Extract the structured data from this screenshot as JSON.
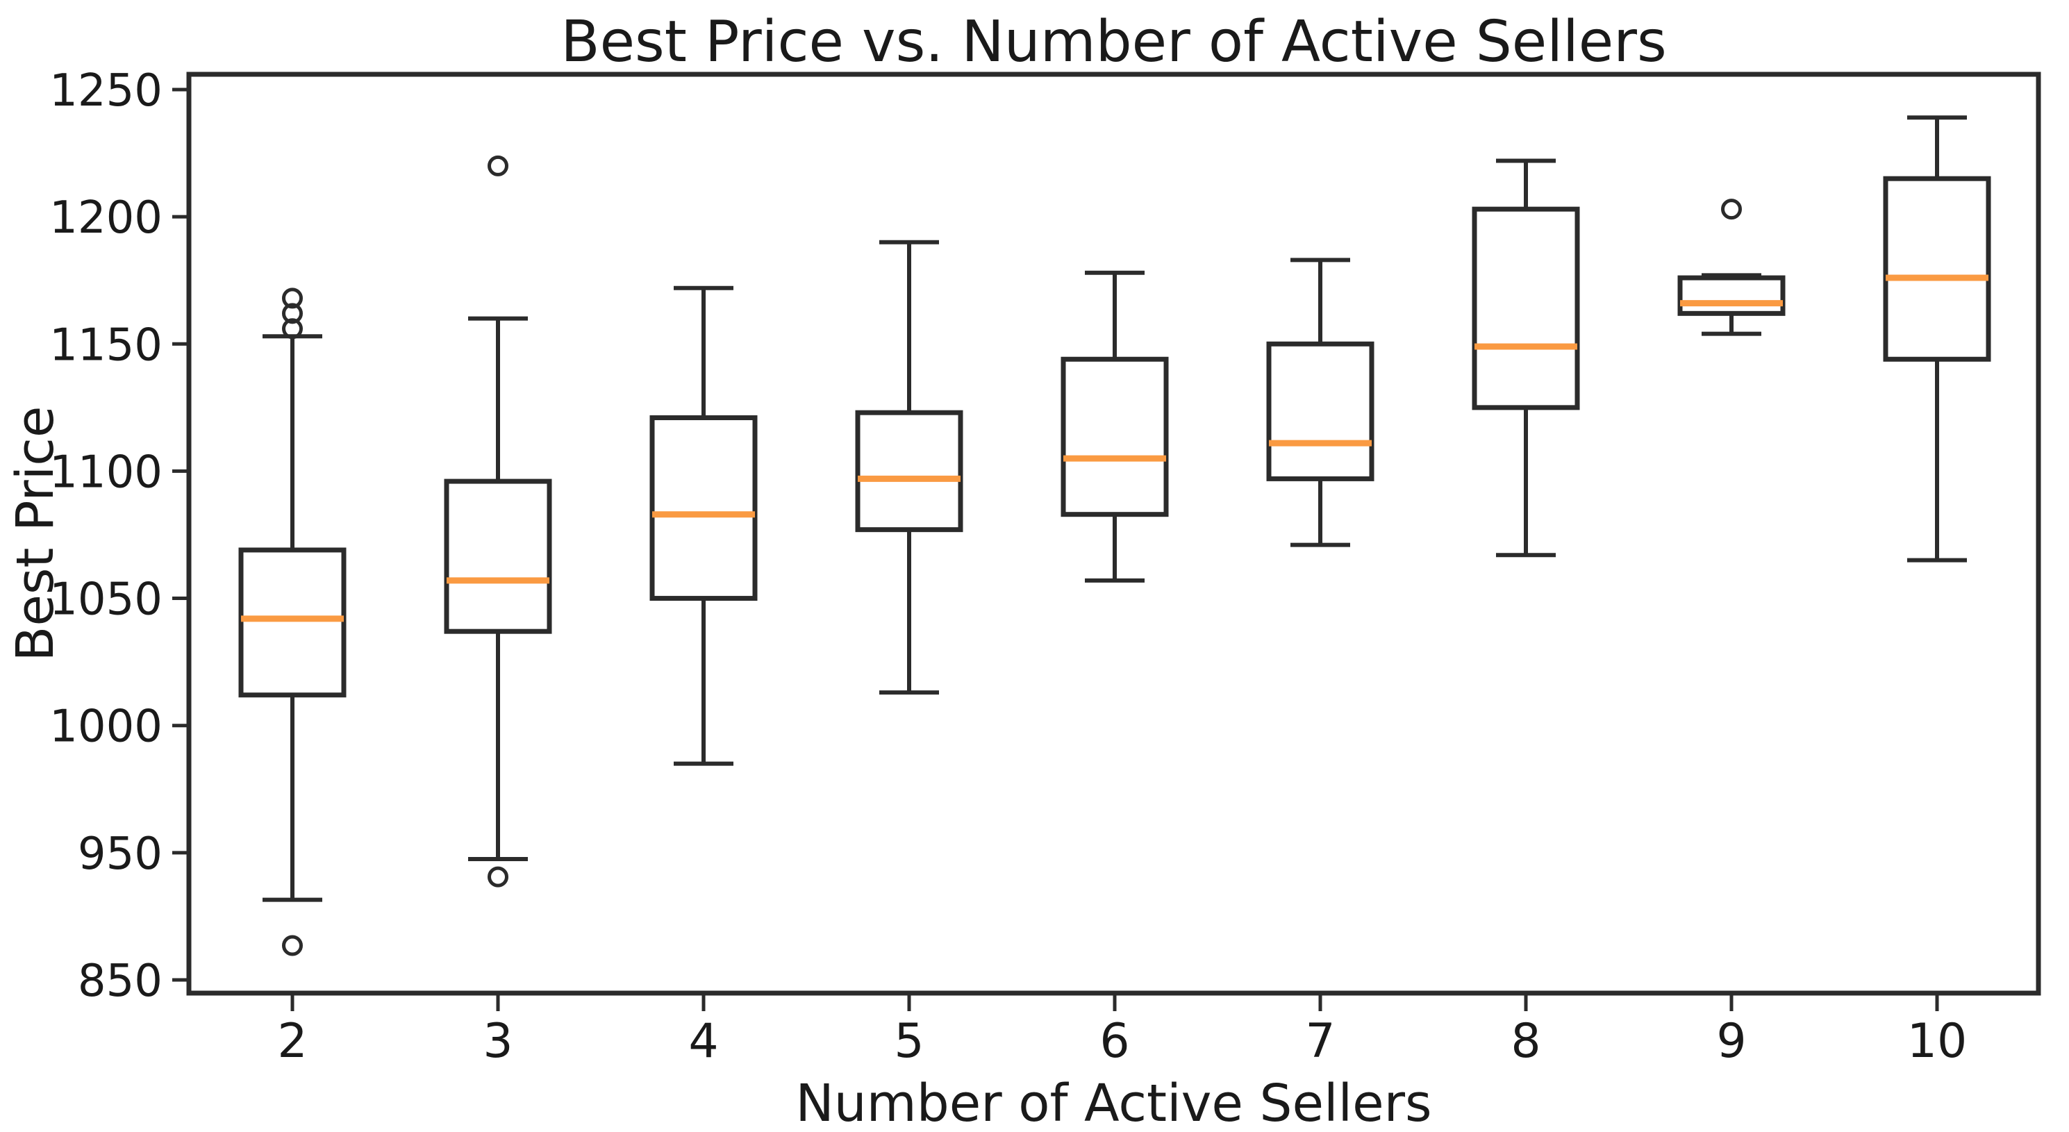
{
  "figure": {
    "background": "#ffffff"
  },
  "chart_data": {
    "type": "boxplot",
    "title": "Best Price vs. Number of Active Sellers",
    "xlabel": "Number of Active Sellers",
    "ylabel": "Best Price",
    "categories": [
      "2",
      "3",
      "4",
      "5",
      "6",
      "7",
      "8",
      "9",
      "10"
    ],
    "y_tick_labels": [
      "1250",
      "1200",
      "1150",
      "1100",
      "1050",
      "1000",
      "950",
      "850"
    ],
    "y_tick_values": [
      1250,
      1200,
      1150,
      1100,
      1050,
      1000,
      950,
      850
    ],
    "grid": false,
    "legend": "none",
    "colors": {
      "box_line": "#2b2b2b",
      "median_line": "#fa9a42",
      "axis_line": "#2b2b2b",
      "text": "#1a1a1a",
      "background": "#ffffff"
    },
    "boxes": [
      {
        "category": "2",
        "whislo": 913,
        "q1": 1012,
        "med": 1042,
        "q3": 1069,
        "whishi": 1153,
        "fliers": [
          1168,
          1162,
          1156,
          877
        ]
      },
      {
        "category": "3",
        "whislo": 945,
        "q1": 1037,
        "med": 1057,
        "q3": 1096,
        "whishi": 1160,
        "fliers": [
          1220,
          931
        ]
      },
      {
        "category": "4",
        "whislo": 985,
        "q1": 1050,
        "med": 1083,
        "q3": 1121,
        "whishi": 1172,
        "fliers": []
      },
      {
        "category": "5",
        "whislo": 1013,
        "q1": 1077,
        "med": 1097,
        "q3": 1123,
        "whishi": 1190,
        "fliers": []
      },
      {
        "category": "6",
        "whislo": 1057,
        "q1": 1083,
        "med": 1105,
        "q3": 1144,
        "whishi": 1178,
        "fliers": []
      },
      {
        "category": "7",
        "whislo": 1071,
        "q1": 1097,
        "med": 1111,
        "q3": 1150,
        "whishi": 1183,
        "fliers": []
      },
      {
        "category": "8",
        "whislo": 1067,
        "q1": 1125,
        "med": 1149,
        "q3": 1203,
        "whishi": 1222,
        "fliers": []
      },
      {
        "category": "9",
        "whislo": 1154,
        "q1": 1162,
        "med": 1166,
        "q3": 1176,
        "whishi": 1177,
        "fliers": [
          1203
        ]
      },
      {
        "category": "10",
        "whislo": 1065,
        "q1": 1144,
        "med": 1176,
        "q3": 1215,
        "whishi": 1239,
        "fliers": []
      }
    ]
  }
}
